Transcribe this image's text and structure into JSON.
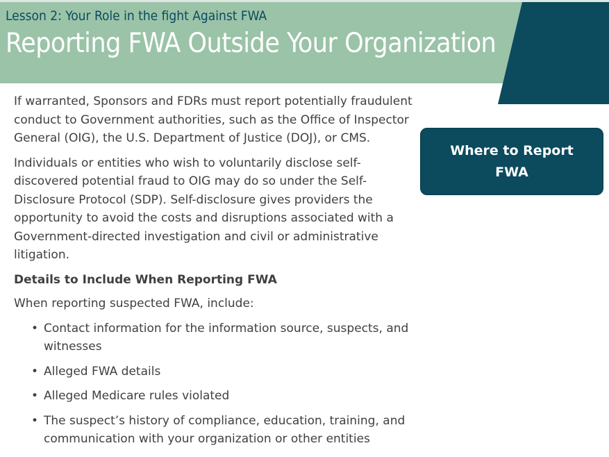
{
  "header": {
    "lesson_label": "Lesson 2: Your Role in the fight Against FWA",
    "title": "Reporting FWA Outside Your Organization"
  },
  "content": {
    "paragraph_1": "If warranted, Sponsors and FDRs must report potentially fraudulent conduct to Government authorities, such as the Office of Inspector General (OIG), the U.S. Department of Justice (DOJ), or CMS.",
    "paragraph_2": "Individuals or entities who wish to voluntarily disclose self-discovered potential fraud to OIG may do so under the Self-Disclosure Protocol (SDP). Self-disclosure gives providers the opportunity to avoid the costs and disruptions associated with a Government-directed investigation and civil or administrative litigation.",
    "subheading": "Details to Include When Reporting FWA",
    "intro": "When reporting suspected FWA, include:",
    "bullets": [
      "Contact information for the information source, suspects, and witnesses",
      "Alleged FWA details",
      "Alleged Medicare rules violated",
      "The suspect’s history of compliance, education, training, and communication with your organization or other entities"
    ]
  },
  "report_button": {
    "label": "Where to Report FWA"
  },
  "colors": {
    "header_band": "#9ac3a8",
    "accent": "#0c4a5e",
    "text": "#404040"
  }
}
